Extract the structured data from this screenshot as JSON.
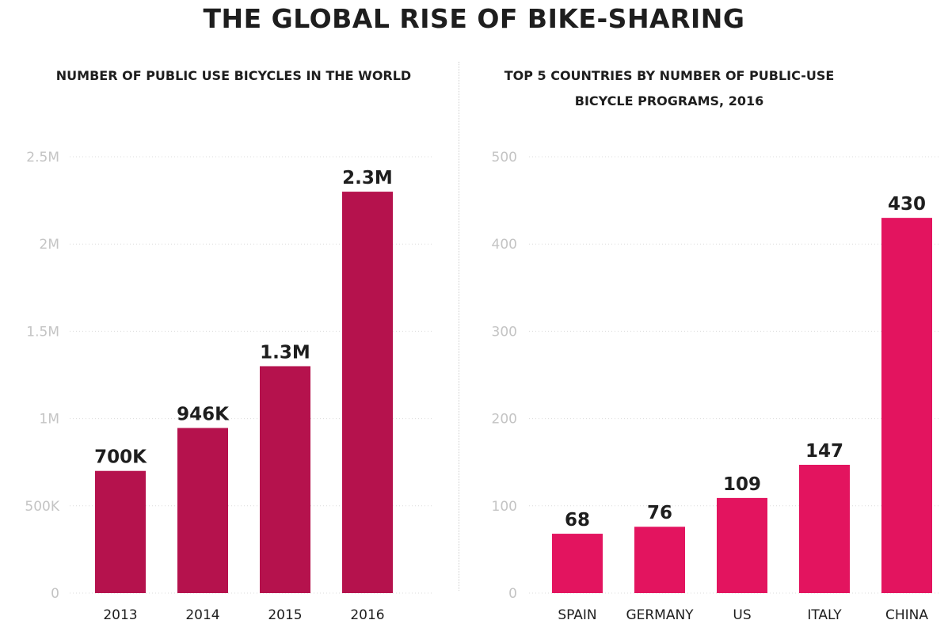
{
  "title": "THE GLOBAL RISE OF BIKE-SHARING",
  "chart_data": [
    {
      "type": "bar",
      "title": "NUMBER OF PUBLIC USE BICYCLES IN THE WORLD",
      "categories": [
        "2013",
        "2014",
        "2015",
        "2016"
      ],
      "values": [
        700000,
        946000,
        1300000,
        2300000
      ],
      "data_labels": [
        "700K",
        "946K",
        "1.3M",
        "2.3M"
      ],
      "ylim": [
        0,
        2500000
      ],
      "yticks": [
        0,
        500000,
        1000000,
        1500000,
        2000000,
        2500000
      ],
      "ytick_labels": [
        "0",
        "500K",
        "1M",
        "1.5M",
        "2M",
        "2.5M"
      ],
      "xlabel": "",
      "ylabel": "",
      "grid": true,
      "color": "#b5124d"
    },
    {
      "type": "bar",
      "title": "TOP 5 COUNTRIES BY NUMBER OF PUBLIC-USE BICYCLE PROGRAMS, 2016",
      "title_lines": [
        "TOP 5 COUNTRIES BY NUMBER OF PUBLIC-USE",
        "BICYCLE PROGRAMS, 2016"
      ],
      "categories": [
        "SPAIN",
        "GERMANY",
        "US",
        "ITALY",
        "CHINA"
      ],
      "values": [
        68,
        76,
        109,
        147,
        430
      ],
      "data_labels": [
        "68",
        "76",
        "109",
        "147",
        "430"
      ],
      "ylim": [
        0,
        500
      ],
      "yticks": [
        0,
        100,
        200,
        300,
        400,
        500
      ],
      "ytick_labels": [
        "0",
        "100",
        "200",
        "300",
        "400",
        "500"
      ],
      "xlabel": "",
      "ylabel": "",
      "grid": true,
      "color": "#e3145f"
    }
  ]
}
